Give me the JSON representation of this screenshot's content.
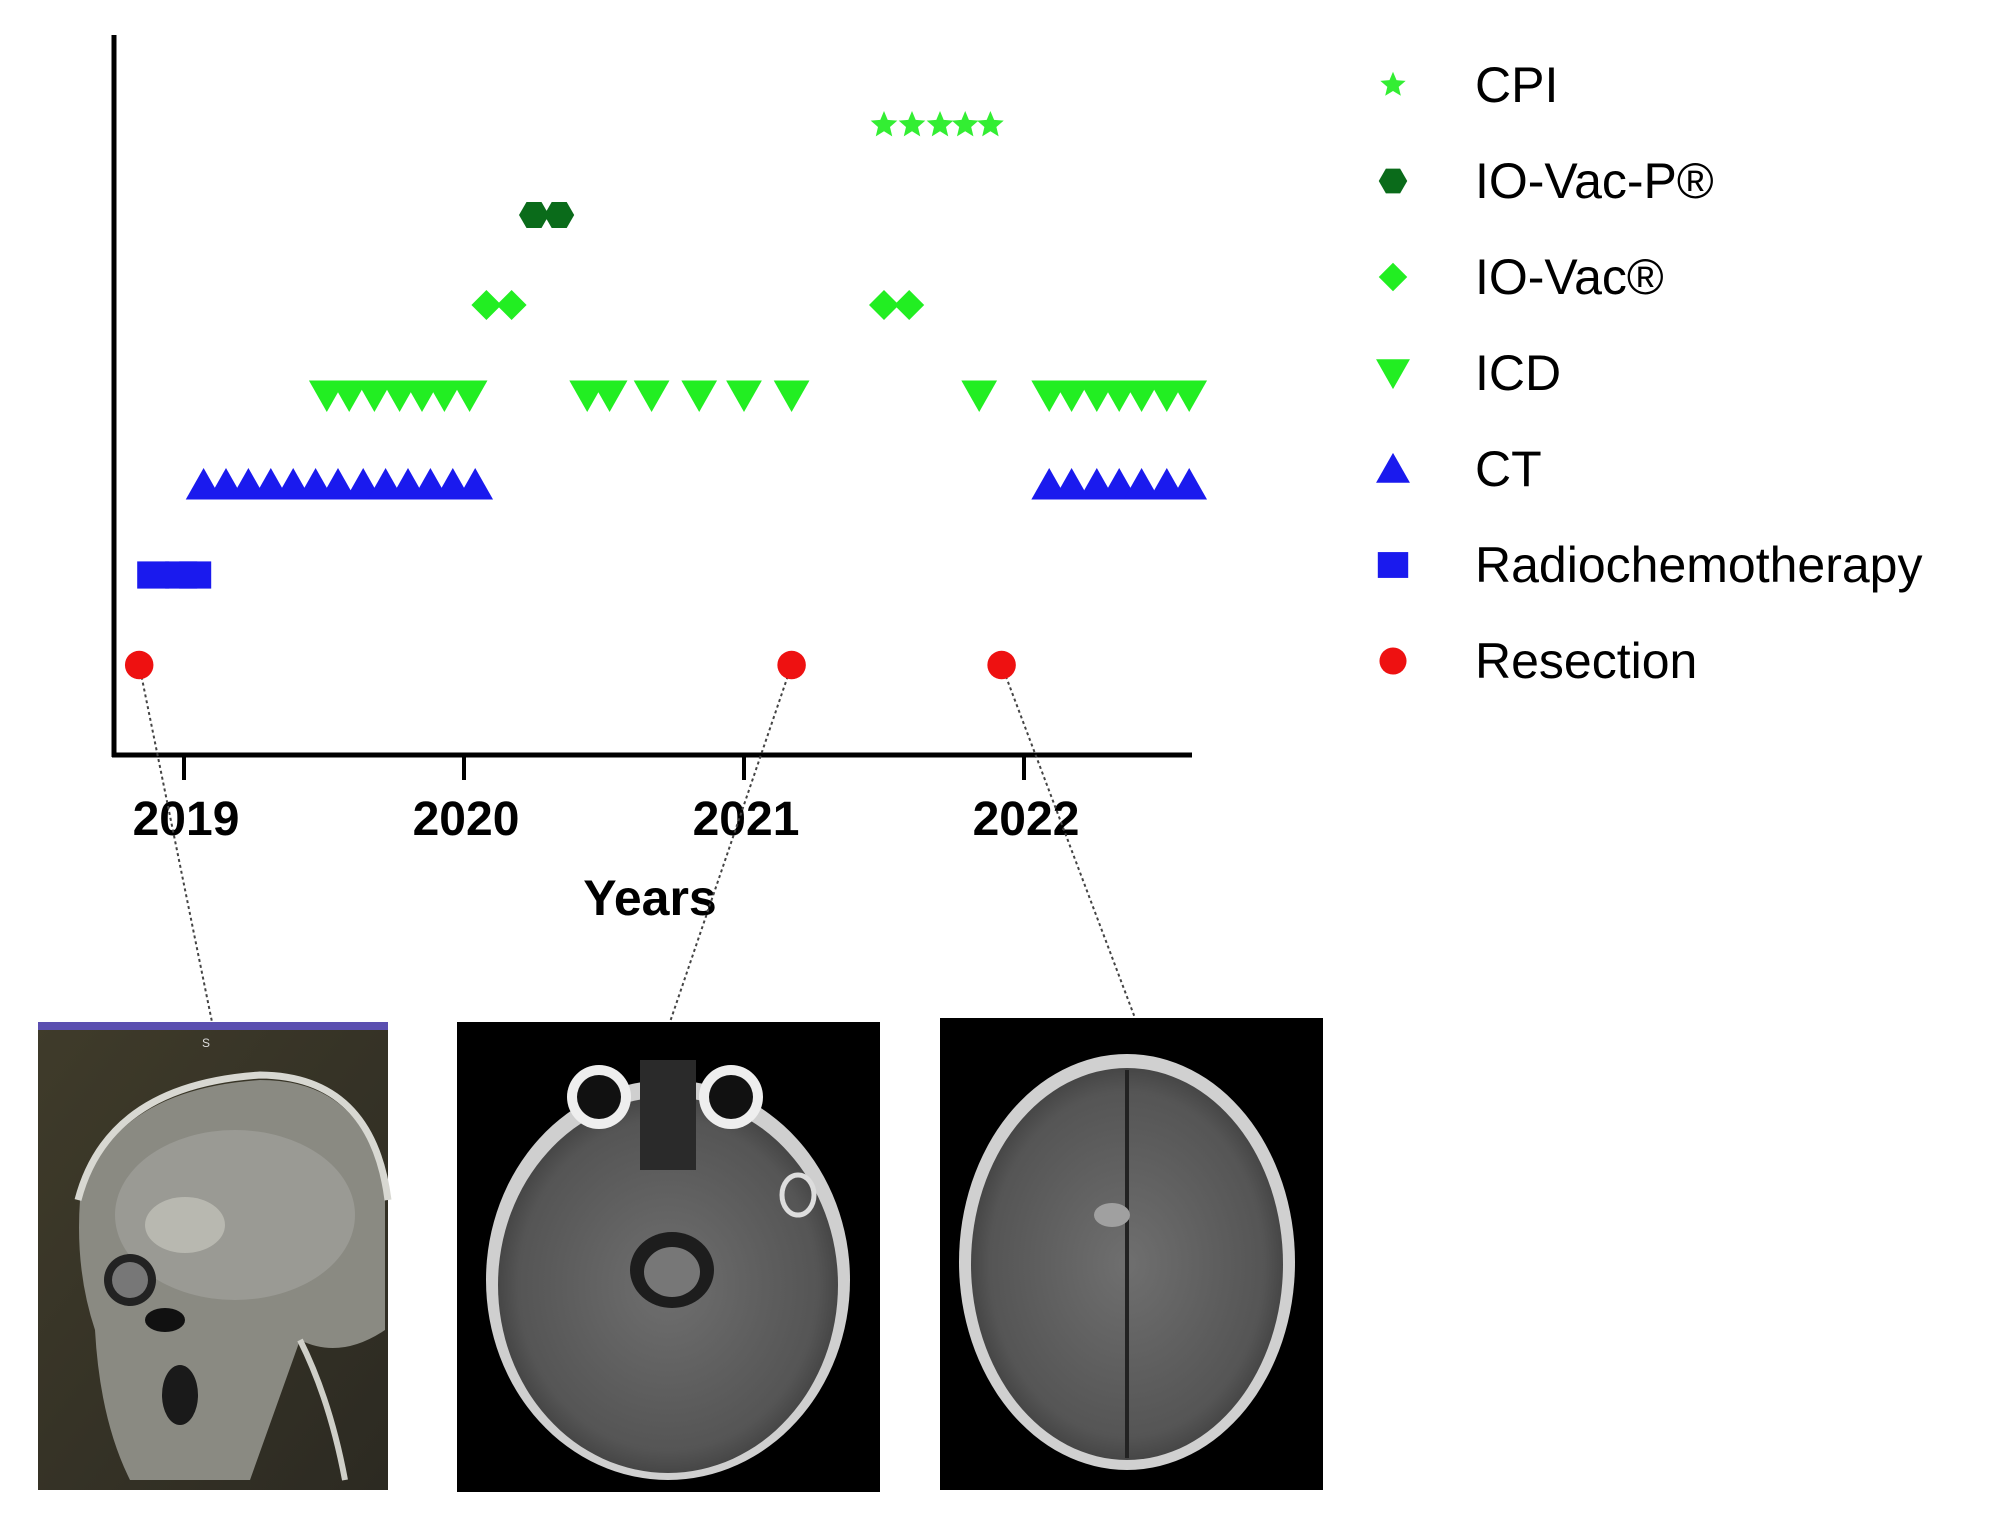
{
  "chart_data": {
    "type": "scatter",
    "title": "",
    "xlabel": "Years",
    "ylabel": "",
    "xlim": [
      2018.75,
      2022.6
    ],
    "xticks": [
      2019,
      2020,
      2021,
      2022
    ],
    "xtick_labels": [
      "2019",
      "2020",
      "2021",
      "2022"
    ],
    "grid": false,
    "legend_position": "right",
    "series": [
      {
        "name": "CPI",
        "level": 7,
        "color": "#33ee33",
        "marker": "star",
        "x": [
          2021.5,
          2021.6,
          2021.7,
          2021.79,
          2021.88
        ]
      },
      {
        "name": "IO-Vac-P®",
        "level": 6,
        "color": "#0a6b1a",
        "marker": "hexagon",
        "x": [
          2020.25,
          2020.34
        ]
      },
      {
        "name": "IO-Vac®",
        "level": 5,
        "color": "#22ee22",
        "marker": "diamond",
        "x": [
          2020.08,
          2020.17,
          2021.5,
          2021.59
        ]
      },
      {
        "name": "ICD",
        "level": 4,
        "color": "#22ee22",
        "marker": "triangle-down",
        "x": [
          2019.51,
          2019.59,
          2019.68,
          2019.77,
          2019.85,
          2019.93,
          2020.02,
          2020.44,
          2020.52,
          2020.67,
          2020.84,
          2021.0,
          2021.17,
          2021.84,
          2022.09,
          2022.17,
          2022.26,
          2022.34,
          2022.42,
          2022.51,
          2022.59
        ]
      },
      {
        "name": "CT",
        "level": 3,
        "color": "#1a1aee",
        "marker": "triangle-up",
        "x": [
          2019.07,
          2019.15,
          2019.23,
          2019.31,
          2019.39,
          2019.47,
          2019.55,
          2019.64,
          2019.72,
          2019.8,
          2019.88,
          2019.96,
          2020.04,
          2022.09,
          2022.17,
          2022.26,
          2022.34,
          2022.42,
          2022.51,
          2022.59
        ]
      },
      {
        "name": "Radiochemotherapy",
        "level": 2,
        "color": "#1a1aee",
        "marker": "square",
        "x": [
          2018.89,
          2018.99,
          2019.04
        ]
      },
      {
        "name": "Resection",
        "level": 1,
        "color": "#ee1111",
        "marker": "circle",
        "x": [
          2018.84,
          2021.17,
          2021.92
        ]
      }
    ]
  },
  "images": [
    {
      "name": "mri-sagittal",
      "caption": "",
      "top_label": "S",
      "links_to_resection": 0
    },
    {
      "name": "mri-axial-temporal",
      "caption": "",
      "links_to_resection": 1
    },
    {
      "name": "mri-axial-vertex",
      "caption": "",
      "links_to_resection": 2
    }
  ]
}
